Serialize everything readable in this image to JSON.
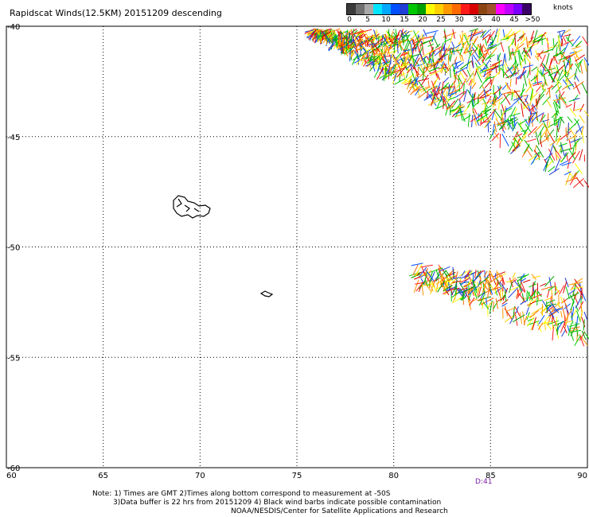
{
  "title": "Rapidscat Winds(12.5KM) 20151209 descending",
  "legend": {
    "unit": "knots",
    "colors": [
      "#3b3b3b",
      "#707070",
      "#a9a9a9",
      "#00e5ff",
      "#00a8ff",
      "#0050ff",
      "#1f3fd6",
      "#00c800",
      "#00a000",
      "#ffff00",
      "#ffd000",
      "#ff9900",
      "#ff6a00",
      "#ff1a1a",
      "#d80000",
      "#8b4513",
      "#a0522d",
      "#ff00ff",
      "#c000ff",
      "#7a00ff",
      "#3a0066"
    ],
    "labels": [
      "0",
      "5",
      "10",
      "15",
      "20",
      "25",
      "30",
      "35",
      "40",
      "45",
      ">50"
    ]
  },
  "axes": {
    "lon_ticks": [
      "60",
      "65",
      "70",
      "75",
      "80",
      "85",
      "90"
    ],
    "lat_ticks": [
      "-40",
      "-45",
      "-50",
      "-55",
      "-60"
    ]
  },
  "map": {
    "lon_range": [
      60,
      90
    ],
    "lat_range": [
      -60,
      -40
    ],
    "grid": "dotted",
    "features": [
      "kerguelen-islands-outline",
      "heard-island-outline",
      "wind-barb-swath-north",
      "wind-barb-swath-south"
    ]
  },
  "time_marker": "D:41",
  "notes": {
    "line1": "Note: 1) Times are GMT 2)Times along bottom correspond to measurement at -50S",
    "line2": "3)Data buffer is 22 hrs from 20151209 4) Black wind barbs indicate possible contamination",
    "line3": "NOAA/NESDIS/Center for Satellite Applications and Research"
  }
}
